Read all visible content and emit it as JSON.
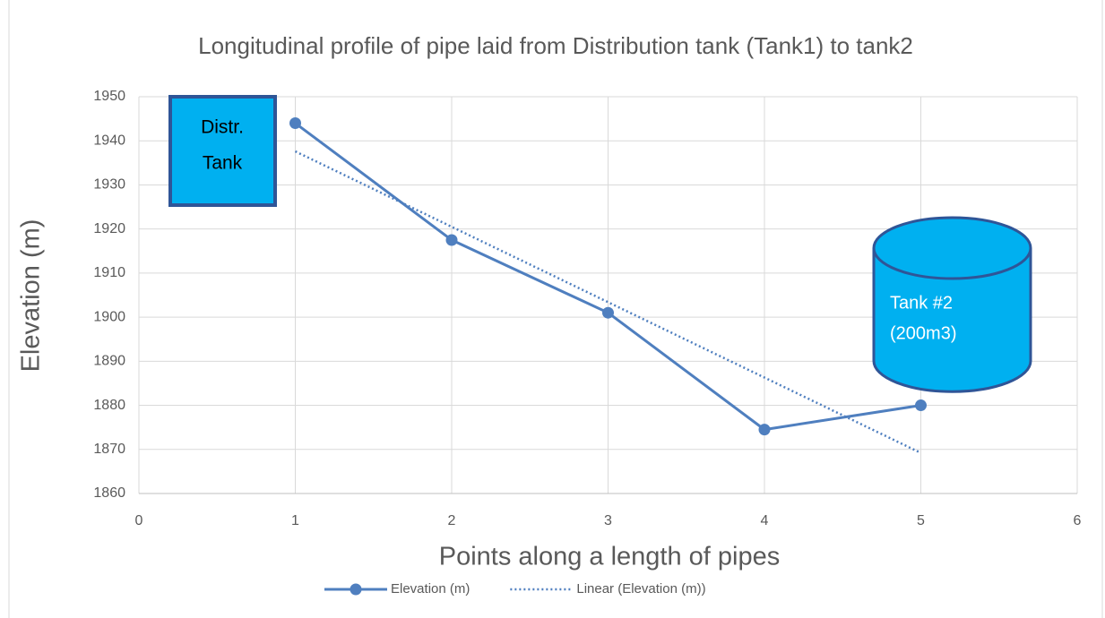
{
  "chart_data": {
    "type": "line",
    "title": "Longitudinal profile of pipe laid from Distribution tank (Tank1) to tank2",
    "x_label": "Points along a length of pipes",
    "y_label": "Elevation (m)",
    "x": [
      1,
      2,
      3,
      4,
      5
    ],
    "series": [
      {
        "name": "Elevation (m)",
        "color": "#4f7fbf",
        "values": [
          1944,
          1917.5,
          1901,
          1874.5,
          1880
        ],
        "line_style": "solid",
        "marker": "circle"
      },
      {
        "name": "Linear (Elevation (m))",
        "color": "#4f7fbf",
        "values": [
          1937.6,
          1920.5,
          1903.4,
          1886.3,
          1869.2
        ],
        "line_style": "dotted",
        "marker": "none"
      }
    ],
    "xlim": [
      0,
      6
    ],
    "xticks": [
      0,
      1,
      2,
      3,
      4,
      5,
      6
    ],
    "ylim": [
      1860,
      1950
    ],
    "yticks": [
      1860,
      1870,
      1880,
      1890,
      1900,
      1910,
      1920,
      1930,
      1940,
      1950
    ],
    "grid": true,
    "legend": "bottom",
    "annotations": {
      "distribution_tank": [
        "Distr.",
        "Tank"
      ],
      "tank2": [
        "Tank #2",
        "(200m3)"
      ]
    }
  }
}
